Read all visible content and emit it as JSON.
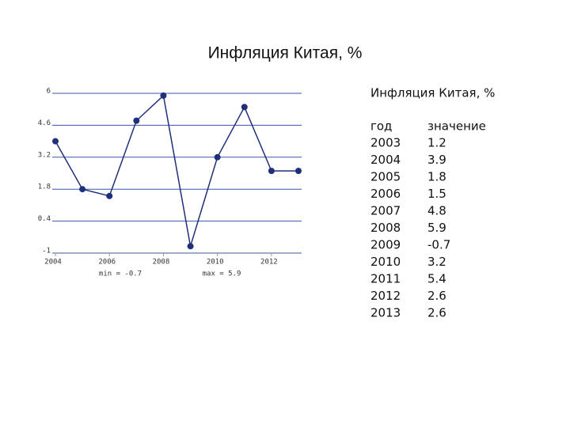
{
  "title": "Инфляция Китая, %",
  "chart_data": {
    "type": "line",
    "x": [
      2004,
      2005,
      2006,
      2007,
      2008,
      2009,
      2010,
      2011,
      2012,
      2013
    ],
    "series": [
      {
        "color": "#1f2f7a",
        "values": [
          3.9,
          1.8,
          1.5,
          4.8,
          5.9,
          -0.7,
          3.2,
          5.4,
          2.6,
          2.6
        ]
      }
    ],
    "xlim": [
      2004,
      2013
    ],
    "xticks": [
      2004,
      2006,
      2008,
      2010,
      2012
    ],
    "ylim": [
      -1,
      6
    ],
    "yticks": [
      6,
      4.6,
      3.2,
      1.8,
      0.4,
      -1
    ],
    "grid": true,
    "annotations": [
      "min = -0.7",
      "max = 5.9"
    ]
  },
  "table": {
    "title": "Инфляция Китая, %",
    "header": [
      "год",
      "значение"
    ],
    "rows": [
      [
        2003,
        1.2
      ],
      [
        2004,
        3.9
      ],
      [
        2005,
        1.8
      ],
      [
        2006,
        1.5
      ],
      [
        2007,
        4.8
      ],
      [
        2008,
        5.9
      ],
      [
        2009,
        -0.7
      ],
      [
        2010,
        3.2
      ],
      [
        2011,
        5.4
      ],
      [
        2012,
        2.6
      ],
      [
        2013,
        2.6
      ]
    ]
  }
}
